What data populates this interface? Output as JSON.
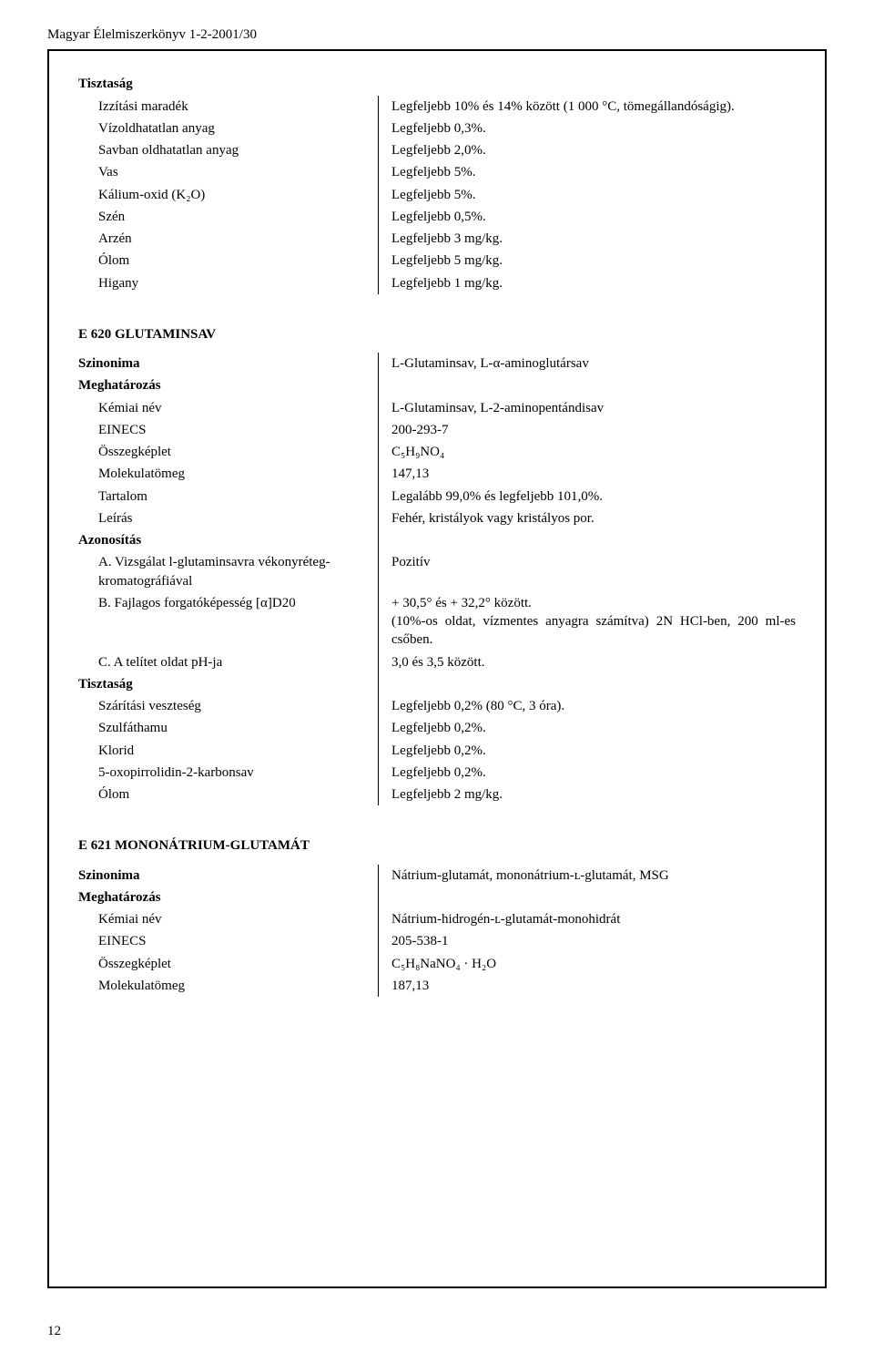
{
  "running_head": "Magyar Élelmiszerkönyv 1-2-2001/30",
  "page_number": "12",
  "labels": {
    "purity": "Tisztaság",
    "definition": "Meghatározás",
    "identification": "Azonosítás",
    "synonym": "Szinonima"
  },
  "purity_top": {
    "rows": [
      {
        "k": "Izzítási maradék",
        "v": "Legfeljebb 10% és 14% között (1 000 °C, tömegállandóságig)."
      },
      {
        "k": "Vízoldhatatlan anyag",
        "v": "Legfeljebb 0,3%."
      },
      {
        "k": "Savban oldhatatlan anyag",
        "v": "Legfeljebb 2,0%."
      },
      {
        "k": "Vas",
        "v": "Legfeljebb 5%."
      },
      {
        "k": "Kálium-oxid (K₂O)",
        "v": "Legfeljebb 5%."
      },
      {
        "k": "Szén",
        "v": "Legfeljebb 0,5%."
      },
      {
        "k": "Arzén",
        "v": "Legfeljebb 3 mg/kg."
      },
      {
        "k": "Ólom",
        "v": "Legfeljebb 5 mg/kg."
      },
      {
        "k": "Higany",
        "v": "Legfeljebb 1 mg/kg."
      }
    ]
  },
  "e620": {
    "title": "E 620 GLUTAMINSAV",
    "synonym_val": "L-Glutaminsav, L-α-aminoglutársav",
    "def_rows": [
      {
        "k": "Kémiai név",
        "v": "L-Glutaminsav, L-2-aminopentándisav"
      },
      {
        "k": "EINECS",
        "v": "200-293-7"
      },
      {
        "k": "Összegképlet",
        "v": "C₅H₉NO₄"
      },
      {
        "k": "Molekulatömeg",
        "v": "147,13"
      },
      {
        "k": "Tartalom",
        "v": "Legalább 99,0% és legfeljebb 101,0%."
      },
      {
        "k": "Leírás",
        "v": "Fehér, kristályok vagy kristályos por."
      }
    ],
    "ident_rows": [
      {
        "k": "A. Vizsgálat l-glutaminsavra vékonyréteg-kromatográfiával",
        "v": "Pozitív"
      },
      {
        "k": "B. Fajlagos forgatóképesség [α]D20",
        "v": "+ 30,5° és + 32,2° között.\n(10%-os oldat, vízmentes anyagra számítva) 2N HCl-ben, 200 ml-es csőben."
      },
      {
        "k": "C. A telítet oldat pH-ja",
        "v": "3,0 és 3,5 között."
      }
    ],
    "purity_rows": [
      {
        "k": "Szárítási veszteség",
        "v": "Legfeljebb 0,2% (80 °C, 3 óra)."
      },
      {
        "k": "Szulfáthamu",
        "v": "Legfeljebb 0,2%."
      },
      {
        "k": "Klorid",
        "v": "Legfeljebb 0,2%."
      },
      {
        "k": "5-oxopirrolidin-2-karbonsav",
        "v": "Legfeljebb 0,2%."
      },
      {
        "k": "Ólom",
        "v": "Legfeljebb 2 mg/kg."
      }
    ]
  },
  "e621": {
    "title": "E 621 MONONÁTRIUM-GLUTAMÁT",
    "synonym_val": "Nátrium-glutamát, mononátrium-ʟ-glutamát, MSG",
    "def_rows": [
      {
        "k": "Kémiai név",
        "v": "Nátrium-hidrogén-ʟ-glutamát-monohidrát"
      },
      {
        "k": "EINECS",
        "v": "205-538-1"
      },
      {
        "k": "Összegképlet",
        "v": "C₅H₈NaNO₄ · H₂O"
      },
      {
        "k": "Molekulatömeg",
        "v": "187,13"
      }
    ]
  }
}
